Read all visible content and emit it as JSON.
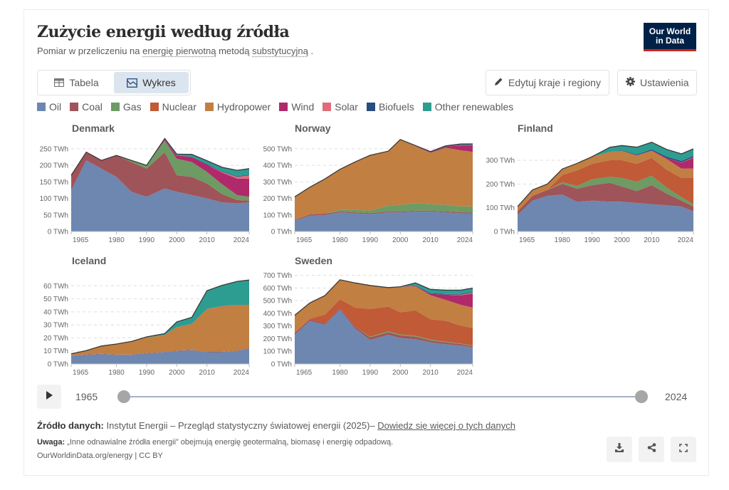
{
  "header": {
    "title": "Zużycie energii według źródła",
    "subtitle_prefix": "Pomiar w przeliczeniu na ",
    "subtitle_link1": "energię pierwotną",
    "subtitle_mid": " metodą ",
    "subtitle_link2": "substytucyjną",
    "subtitle_suffix": " .",
    "logo_line1": "Our World",
    "logo_line2": "in Data"
  },
  "tabs": [
    {
      "label": "Tabela",
      "icon": "table-icon",
      "active": false
    },
    {
      "label": "Wykres",
      "icon": "chart-icon",
      "active": true
    }
  ],
  "toolbar": {
    "edit_label": "Edytuj kraje i regiony",
    "settings_label": "Ustawienia"
  },
  "colors": {
    "Oil": "#6d87b0",
    "Coal": "#9f5459",
    "Gas": "#6e9a64",
    "Nuclear": "#c05a37",
    "Hydropower": "#c17f42",
    "Wind": "#b0296b",
    "Solar": "#e06c7a",
    "Biofuels": "#294e7d",
    "Other renewables": "#2d9d92"
  },
  "timeline": {
    "start_label": "1965",
    "end_label": "2024",
    "start_value": 1965,
    "end_value": 2024
  },
  "footer": {
    "source_label": "Źródło danych:",
    "source_text": " Instytut Energii – Przegląd statystyczny światowej energii (2025)– ",
    "source_link": "Dowiedz się więcej o tych danych",
    "note_label": "Uwaga:",
    "note_text": " „Inne odnawialne źródła energii” obejmują energię geotermalną, biomasę i energię odpadową.",
    "url_text": "OurWorldinData.org/energy | CC BY"
  },
  "actions": {
    "download": "download-icon",
    "share": "share-icon",
    "fullscreen": "fullscreen-icon"
  },
  "chart_data": {
    "type": "area",
    "title": "Zużycie energii według źródła",
    "unit": "TWh",
    "stacked": true,
    "legend": [
      "Oil",
      "Coal",
      "Gas",
      "Nuclear",
      "Hydropower",
      "Wind",
      "Solar",
      "Biofuels",
      "Other renewables"
    ],
    "legend_position": "top",
    "x_range": [
      1965,
      2024
    ],
    "x_ticks": [
      "1965",
      "1980",
      "1990",
      "2000",
      "2010",
      "2024"
    ],
    "key_years": [
      1965,
      1970,
      1975,
      1980,
      1985,
      1990,
      1996,
      2000,
      2005,
      2010,
      2015,
      2020,
      2024
    ],
    "panels": [
      {
        "name": "Denmark",
        "ylim": [
          0,
          280
        ],
        "y_ticks": [
          "0 TWh",
          "50 TWh",
          "100 TWh",
          "150 TWh",
          "200 TWh",
          "250 TWh"
        ],
        "y_values": [
          0,
          50,
          100,
          150,
          200,
          250
        ],
        "series": {
          "Oil": [
            125,
            215,
            190,
            165,
            120,
            105,
            130,
            120,
            110,
            100,
            88,
            85,
            88
          ],
          "Coal": [
            45,
            25,
            25,
            65,
            90,
            85,
            110,
            50,
            55,
            45,
            25,
            10,
            5
          ],
          "Gas": [
            0,
            0,
            0,
            0,
            5,
            10,
            35,
            50,
            45,
            35,
            30,
            15,
            12
          ],
          "Nuclear": [
            0,
            0,
            0,
            0,
            0,
            0,
            0,
            0,
            0,
            0,
            0,
            0,
            0
          ],
          "Hydropower": [
            0,
            0,
            0,
            0,
            0,
            0,
            0,
            0,
            0,
            0,
            0,
            0,
            0
          ],
          "Wind": [
            0,
            0,
            0,
            0,
            0,
            0,
            4,
            10,
            15,
            22,
            35,
            50,
            55
          ],
          "Solar": [
            0,
            0,
            0,
            0,
            0,
            0,
            0,
            0,
            0,
            0,
            2,
            5,
            10
          ],
          "Biofuels": [
            0,
            0,
            0,
            0,
            0,
            0,
            0,
            0,
            1,
            2,
            2,
            2,
            2
          ],
          "Other renewables": [
            0,
            0,
            0,
            0,
            0,
            0,
            2,
            4,
            7,
            10,
            12,
            18,
            18
          ]
        }
      },
      {
        "name": "Norway",
        "ylim": [
          0,
          560
        ],
        "y_ticks": [
          "0 TWh",
          "100 TWh",
          "200 TWh",
          "300 TWh",
          "400 TWh",
          "500 TWh"
        ],
        "y_values": [
          0,
          100,
          200,
          300,
          400,
          500
        ],
        "series": {
          "Oil": [
            65,
            95,
            100,
            115,
            110,
            105,
            115,
            115,
            120,
            120,
            115,
            110,
            110
          ],
          "Coal": [
            5,
            8,
            8,
            6,
            6,
            6,
            6,
            6,
            6,
            6,
            6,
            6,
            6
          ],
          "Gas": [
            0,
            0,
            0,
            10,
            15,
            15,
            35,
            40,
            45,
            40,
            40,
            35,
            35
          ],
          "Nuclear": [
            0,
            0,
            0,
            0,
            0,
            0,
            0,
            0,
            0,
            0,
            0,
            0,
            0
          ],
          "Hydropower": [
            140,
            165,
            210,
            245,
            290,
            335,
            330,
            395,
            345,
            310,
            345,
            340,
            330
          ],
          "Wind": [
            0,
            0,
            0,
            0,
            0,
            0,
            0,
            0,
            2,
            3,
            7,
            30,
            40
          ],
          "Solar": [
            0,
            0,
            0,
            0,
            0,
            0,
            0,
            0,
            0,
            0,
            0,
            1,
            2
          ],
          "Biofuels": [
            0,
            0,
            0,
            0,
            0,
            0,
            0,
            0,
            1,
            2,
            2,
            3,
            3
          ],
          "Other renewables": [
            0,
            0,
            0,
            0,
            0,
            0,
            0,
            0,
            1,
            2,
            3,
            4,
            4
          ]
        }
      },
      {
        "name": "Finland",
        "ylim": [
          0,
          390
        ],
        "y_ticks": [
          "0 TWh",
          "100 TWh",
          "200 TWh",
          "300 TWh"
        ],
        "y_values": [
          0,
          100,
          200,
          300
        ],
        "series": {
          "Oil": [
            70,
            130,
            150,
            155,
            125,
            130,
            125,
            125,
            120,
            115,
            110,
            105,
            85
          ],
          "Coal": [
            15,
            20,
            25,
            45,
            55,
            65,
            80,
            65,
            50,
            80,
            50,
            25,
            20
          ],
          "Gas": [
            0,
            0,
            0,
            8,
            12,
            25,
            25,
            35,
            40,
            40,
            25,
            15,
            10
          ],
          "Nuclear": [
            0,
            0,
            0,
            30,
            65,
            65,
            70,
            75,
            75,
            75,
            75,
            80,
            110
          ],
          "Hydropower": [
            20,
            25,
            25,
            25,
            30,
            30,
            35,
            40,
            35,
            30,
            45,
            40,
            40
          ],
          "Wind": [
            0,
            0,
            0,
            0,
            0,
            0,
            0,
            0,
            1,
            1,
            5,
            25,
            45
          ],
          "Solar": [
            0,
            0,
            0,
            0,
            0,
            0,
            0,
            0,
            0,
            0,
            0,
            1,
            2
          ],
          "Biofuels": [
            0,
            0,
            0,
            0,
            0,
            0,
            0,
            2,
            4,
            5,
            6,
            6,
            6
          ],
          "Other renewables": [
            0,
            0,
            0,
            0,
            0,
            0,
            20,
            20,
            30,
            30,
            30,
            30,
            30
          ]
        }
      },
      {
        "name": "Iceland",
        "ylim": [
          0,
          70
        ],
        "y_ticks": [
          "0 TWh",
          "10 TWh",
          "20 TWh",
          "30 TWh",
          "40 TWh",
          "50 TWh",
          "60 TWh"
        ],
        "y_values": [
          0,
          10,
          20,
          30,
          40,
          50,
          60
        ],
        "series": {
          "Oil": [
            6,
            7,
            7.5,
            7,
            7,
            8,
            9,
            10,
            10.5,
            9,
            9,
            10,
            12
          ],
          "Coal": [
            0.3,
            0.3,
            0.3,
            0.3,
            0.3,
            0.3,
            0.3,
            0.3,
            0.3,
            0.3,
            0.3,
            0.3,
            0.3
          ],
          "Gas": [
            0,
            0,
            0,
            0,
            0,
            0,
            0,
            0,
            0,
            0,
            0,
            0,
            0
          ],
          "Nuclear": [
            0,
            0,
            0,
            0,
            0,
            0,
            0,
            0,
            0,
            0,
            0,
            0,
            0
          ],
          "Hydropower": [
            1.5,
            3,
            6,
            8,
            10,
            12,
            13,
            18,
            20,
            33,
            35,
            35,
            33
          ],
          "Wind": [
            0,
            0,
            0,
            0,
            0,
            0,
            0,
            0,
            0,
            0,
            0.1,
            0.1,
            0.1
          ],
          "Solar": [
            0,
            0,
            0,
            0,
            0,
            0,
            0,
            0,
            0,
            0,
            0,
            0,
            0
          ],
          "Biofuels": [
            0,
            0,
            0,
            0,
            0,
            0,
            0,
            0,
            0,
            0,
            0,
            0,
            0
          ],
          "Other renewables": [
            0,
            0,
            0,
            0,
            0,
            0.5,
            1,
            4,
            5,
            14,
            16,
            18,
            19
          ]
        }
      },
      {
        "name": "Sweden",
        "ylim": [
          0,
          720
        ],
        "y_ticks": [
          "0 TWh",
          "100 TWh",
          "200 TWh",
          "300 TWh",
          "400 TWh",
          "500 TWh",
          "600 TWh",
          "700 TWh"
        ],
        "y_values": [
          0,
          100,
          200,
          300,
          400,
          500,
          600,
          700
        ],
        "series": {
          "Oil": [
            230,
            340,
            310,
            430,
            280,
            190,
            230,
            205,
            195,
            170,
            155,
            145,
            130
          ],
          "Coal": [
            15,
            12,
            10,
            10,
            15,
            20,
            20,
            20,
            20,
            15,
            15,
            12,
            10
          ],
          "Gas": [
            0,
            0,
            0,
            0,
            0,
            5,
            8,
            8,
            8,
            8,
            6,
            5,
            5
          ],
          "Nuclear": [
            0,
            5,
            70,
            70,
            150,
            220,
            195,
            175,
            200,
            160,
            165,
            140,
            140
          ],
          "Hydropower": [
            140,
            125,
            150,
            155,
            195,
            185,
            150,
            200,
            190,
            190,
            165,
            165,
            160
          ],
          "Wind": [
            0,
            0,
            0,
            0,
            0,
            0,
            0,
            2,
            4,
            10,
            40,
            75,
            110
          ],
          "Solar": [
            0,
            0,
            0,
            0,
            0,
            0,
            0,
            0,
            0,
            0,
            1,
            5,
            8
          ],
          "Biofuels": [
            0,
            0,
            0,
            0,
            0,
            0,
            0,
            0,
            3,
            6,
            6,
            6,
            6
          ],
          "Other renewables": [
            0,
            0,
            0,
            0,
            0,
            0,
            0,
            0,
            20,
            30,
            30,
            30,
            30
          ]
        }
      }
    ]
  }
}
